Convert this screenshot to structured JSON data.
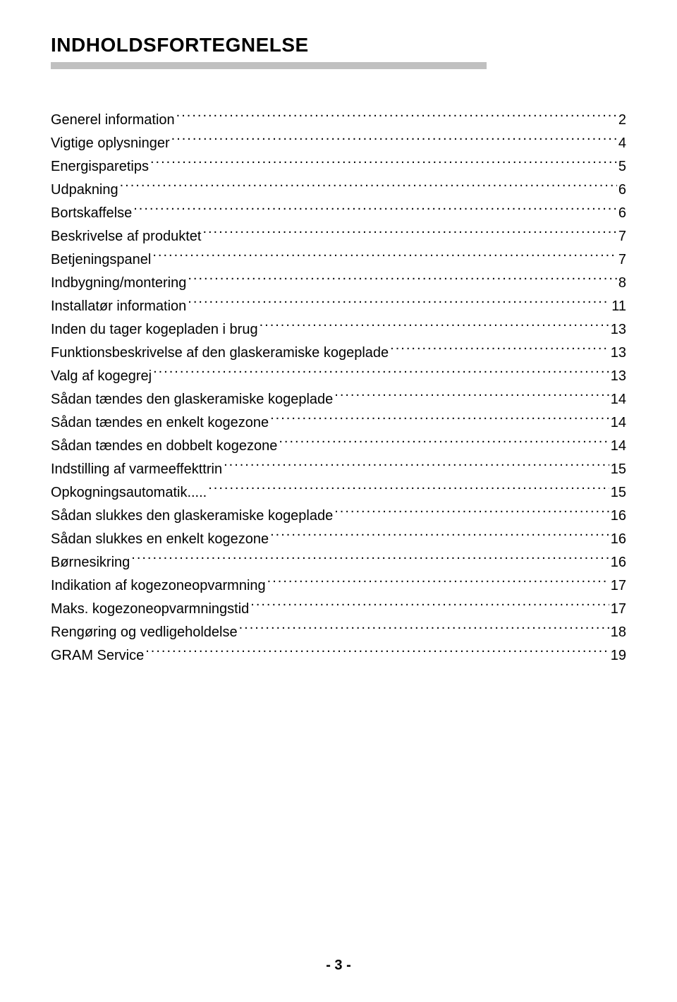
{
  "title": "INDHOLDSFORTEGNELSE",
  "underline_color": "#c0c0c0",
  "text_color": "#000000",
  "background_color": "#ffffff",
  "title_fontsize": 28,
  "body_fontsize": 20,
  "toc": [
    {
      "label": "Generel information",
      "page": "2"
    },
    {
      "label": "Vigtige oplysninger",
      "page": "4"
    },
    {
      "label": "Energisparetips",
      "page": "5"
    },
    {
      "label": "Udpakning",
      "page": "6"
    },
    {
      "label": "Bortskaffelse",
      "page": "6"
    },
    {
      "label": "Beskrivelse af produktet",
      "page": "7"
    },
    {
      "label": "Betjeningspanel",
      "page": "7"
    },
    {
      "label": "Indbygning/montering",
      "page": "8"
    },
    {
      "label": "Installatør information",
      "page": "11"
    },
    {
      "label": "Inden du tager kogepladen i brug",
      "page": "13"
    },
    {
      "label": "Funktionsbeskrivelse af den glaskeramiske kogeplade",
      "page": "13"
    },
    {
      "label": "Valg af kogegrej",
      "page": "13"
    },
    {
      "label": "Sådan tændes den glaskeramiske kogeplade",
      "page": "14"
    },
    {
      "label": "Sådan tændes en enkelt kogezone",
      "page": "14"
    },
    {
      "label": "Sådan tændes en dobbelt kogezone",
      "page": "14"
    },
    {
      "label": "Indstilling af varmeeffekttrin",
      "page": "15"
    },
    {
      "label": "Opkogningsautomatik.....",
      "page": "15"
    },
    {
      "label": "Sådan slukkes den glaskeramiske kogeplade",
      "page": "16"
    },
    {
      "label": "Sådan slukkes en enkelt kogezone",
      "page": "16"
    },
    {
      "label": "Børnesikring",
      "page": "16"
    },
    {
      "label": "Indikation af kogezoneopvarmning",
      "page": "17"
    },
    {
      "label": "Maks. kogezoneopvarmningstid",
      "page": "17"
    },
    {
      "label": "Rengøring og vedligeholdelse",
      "page": "18"
    },
    {
      "label": "GRAM Service",
      "page": "19"
    }
  ],
  "page_number": "- 3 -"
}
